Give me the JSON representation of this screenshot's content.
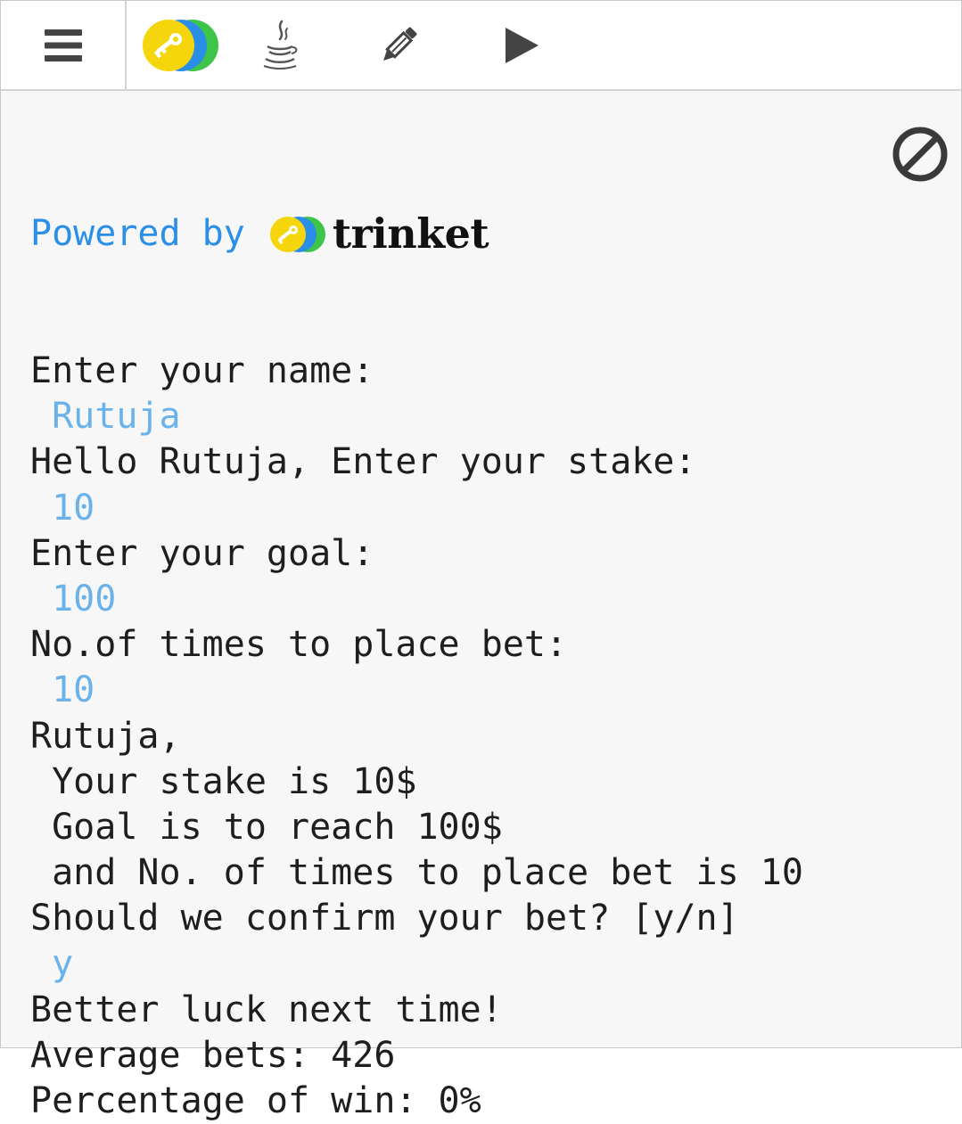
{
  "toolbar": {
    "menu_icon": "hamburger-menu-icon",
    "logo_icon": "trinket-logo-icon",
    "java_icon": "java-icon",
    "edit_icon": "pencil-icon",
    "run_icon": "play-icon"
  },
  "console": {
    "powered_by": "Powered by",
    "brand_name": "trinket",
    "clear_icon": "clear-output-icon",
    "lines": [
      {
        "text": "Enter your name:",
        "type": "output"
      },
      {
        "text": " Rutuja",
        "type": "input"
      },
      {
        "text": "Hello Rutuja, Enter your stake:",
        "type": "output"
      },
      {
        "text": " 10",
        "type": "input"
      },
      {
        "text": "Enter your goal:",
        "type": "output"
      },
      {
        "text": " 100",
        "type": "input"
      },
      {
        "text": "No.of times to place bet:",
        "type": "output"
      },
      {
        "text": " 10",
        "type": "input"
      },
      {
        "text": "Rutuja,",
        "type": "output"
      },
      {
        "text": " Your stake is 10$",
        "type": "output"
      },
      {
        "text": " Goal is to reach 100$",
        "type": "output"
      },
      {
        "text": " and No. of times to place bet is 10",
        "type": "output"
      },
      {
        "text": "Should we confirm your bet? [y/n]",
        "type": "output"
      },
      {
        "text": " y",
        "type": "input"
      },
      {
        "text": "Better luck next time!",
        "type": "output"
      },
      {
        "text": "Average bets: 426",
        "type": "output"
      },
      {
        "text": "Percentage of win: 0%",
        "type": "output"
      }
    ]
  },
  "colors": {
    "powered_text": "#2b8fe8",
    "input_text": "#6ab2e9",
    "output_text": "#1e1e1e",
    "logo_yellow": "#f5d60c",
    "logo_blue": "#2a8de6",
    "logo_green": "#3fc44a"
  }
}
